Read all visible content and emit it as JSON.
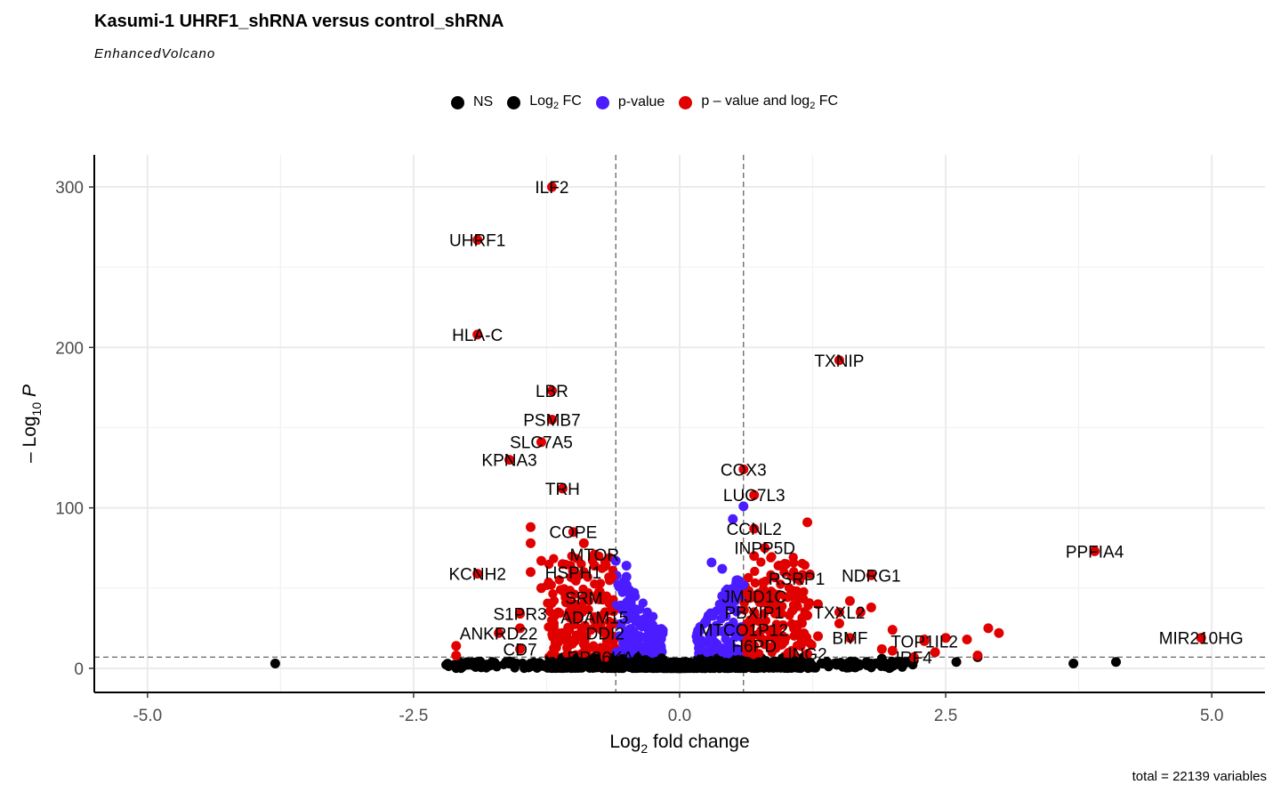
{
  "title": "Kasumi-1 UHRF1_shRNA versus control_shRNA",
  "subtitle": "EnhancedVolcano",
  "caption": "total = 22139 variables",
  "legend": [
    {
      "key": "ns",
      "label": "NS",
      "color": "#000000"
    },
    {
      "key": "fc",
      "label": "Log",
      "sub": "2",
      "suffix": " FC",
      "color": "#000000"
    },
    {
      "key": "p",
      "label": "p-value",
      "color": "#4b1cff"
    },
    {
      "key": "pfc",
      "label": "p – value and log",
      "sub": "2",
      "suffix": " FC",
      "color": "#e00000"
    }
  ],
  "chart_data": {
    "type": "scatter",
    "title": "Kasumi-1 UHRF1_shRNA versus control_shRNA",
    "subtitle": "EnhancedVolcano",
    "xlabel": "Log2 fold change",
    "ylabel": "– Log10 P",
    "xlim": [
      -5.5,
      5.5
    ],
    "ylim": [
      -15,
      320
    ],
    "xticks": [
      -5.0,
      -2.5,
      0.0,
      2.5,
      5.0
    ],
    "xtick_labels": [
      "-5.0",
      "-2.5",
      "0.0",
      "2.5",
      "5.0"
    ],
    "yticks": [
      0,
      100,
      200,
      300
    ],
    "ytick_labels": [
      "0",
      "100",
      "200",
      "300"
    ],
    "fc_cutoff": 0.6,
    "p_cutoff_neglog10": 7,
    "grid": true,
    "legend_position": "top",
    "colors": {
      "ns": "#000000",
      "fc": "#000000",
      "p": "#4b1cff",
      "pfc": "#e00000"
    },
    "labeled_points": [
      {
        "gene": "ILF2",
        "x": -1.2,
        "y": 300
      },
      {
        "gene": "UHRF1",
        "x": -1.9,
        "y": 267
      },
      {
        "gene": "HLA-C",
        "x": -1.9,
        "y": 208
      },
      {
        "gene": "TXNIP",
        "x": 1.5,
        "y": 192
      },
      {
        "gene": "LBR",
        "x": -1.2,
        "y": 173
      },
      {
        "gene": "PSMB7",
        "x": -1.2,
        "y": 155
      },
      {
        "gene": "SLC7A5",
        "x": -1.3,
        "y": 141
      },
      {
        "gene": "KPNA3",
        "x": -1.6,
        "y": 130
      },
      {
        "gene": "COX3",
        "x": 0.6,
        "y": 124
      },
      {
        "gene": "TRH",
        "x": -1.1,
        "y": 112
      },
      {
        "gene": "LUC7L3",
        "x": 0.7,
        "y": 108
      },
      {
        "gene": "CCNL2",
        "x": 0.7,
        "y": 87
      },
      {
        "gene": "COPE",
        "x": -1.0,
        "y": 85
      },
      {
        "gene": "INPP5D",
        "x": 0.8,
        "y": 75
      },
      {
        "gene": "PPFIA4",
        "x": 3.9,
        "y": 73
      },
      {
        "gene": "MTOR",
        "x": -0.8,
        "y": 71
      },
      {
        "gene": "HSPH1",
        "x": -1.0,
        "y": 60
      },
      {
        "gene": "KCNH2",
        "x": -1.9,
        "y": 59
      },
      {
        "gene": "NDRG1",
        "x": 1.8,
        "y": 58
      },
      {
        "gene": "RSRP1",
        "x": 1.1,
        "y": 56
      },
      {
        "gene": "JMJD1C",
        "x": 0.7,
        "y": 45
      },
      {
        "gene": "SRM",
        "x": -0.9,
        "y": 44
      },
      {
        "gene": "PBXIP1",
        "x": 0.7,
        "y": 35
      },
      {
        "gene": "TXXL2",
        "x": 1.5,
        "y": 35
      },
      {
        "gene": "S1PR3",
        "x": -1.5,
        "y": 34
      },
      {
        "gene": "ADAM15",
        "x": -0.8,
        "y": 32
      },
      {
        "gene": "MTCO1P12",
        "x": 0.6,
        "y": 24
      },
      {
        "gene": "ANKRD22",
        "x": -1.7,
        "y": 22
      },
      {
        "gene": "DDI2",
        "x": -0.7,
        "y": 22
      },
      {
        "gene": "MIR210HG",
        "x": 4.9,
        "y": 19
      },
      {
        "gene": "BMF",
        "x": 1.6,
        "y": 19
      },
      {
        "gene": "TOP1IL2",
        "x": 2.3,
        "y": 17
      },
      {
        "gene": "H6PD",
        "x": 0.7,
        "y": 14
      },
      {
        "gene": "CD7",
        "x": -1.5,
        "y": 12
      },
      {
        "gene": "IRF4",
        "x": 2.2,
        "y": 7
      },
      {
        "gene": "RPS6KA1",
        "x": -0.7,
        "y": 7
      },
      {
        "gene": "ING2",
        "x": 1.2,
        "y": 9
      }
    ],
    "other_points": {
      "ns": [
        [
          -3.8,
          3
        ],
        [
          3.7,
          3
        ],
        [
          4.1,
          4
        ],
        [
          2.8,
          7
        ],
        [
          2.6,
          4
        ],
        [
          -1.9,
          4
        ],
        [
          -1.4,
          3
        ],
        [
          -1.6,
          3
        ],
        [
          2.2,
          5
        ],
        [
          1.8,
          3
        ],
        [
          1.9,
          6
        ]
      ],
      "pfc": [
        [
          -1.4,
          88
        ],
        [
          -1.4,
          78
        ],
        [
          -1.3,
          67
        ],
        [
          -0.9,
          78
        ],
        [
          -1.1,
          65
        ],
        [
          -1.3,
          50
        ],
        [
          -1.4,
          60
        ],
        [
          -2.1,
          14
        ],
        [
          -2.1,
          8
        ],
        [
          -1.0,
          40
        ],
        [
          -1.1,
          49
        ],
        [
          -0.9,
          60
        ],
        [
          -0.8,
          64
        ],
        [
          1.2,
          91
        ],
        [
          0.7,
          70
        ],
        [
          1.0,
          65
        ],
        [
          1.1,
          48
        ],
        [
          1.3,
          40
        ],
        [
          1.6,
          42
        ],
        [
          1.7,
          35
        ],
        [
          1.8,
          38
        ],
        [
          2.0,
          24
        ],
        [
          2.3,
          18
        ],
        [
          2.5,
          19
        ],
        [
          2.7,
          18
        ],
        [
          2.9,
          25
        ],
        [
          3.0,
          22
        ],
        [
          2.4,
          10
        ],
        [
          2.8,
          8
        ],
        [
          2.0,
          11
        ],
        [
          1.5,
          28
        ],
        [
          1.9,
          12
        ],
        [
          -1.5,
          25
        ],
        [
          -0.8,
          30
        ],
        [
          -0.7,
          35
        ],
        [
          0.9,
          22
        ],
        [
          0.8,
          15
        ],
        [
          1.1,
          27
        ],
        [
          1.3,
          20
        ],
        [
          -0.9,
          15
        ],
        [
          -1.1,
          22
        ],
        [
          -1.2,
          30
        ],
        [
          0.9,
          40
        ],
        [
          1.2,
          33
        ]
      ],
      "p": [
        [
          0.3,
          66
        ],
        [
          0.4,
          62
        ],
        [
          0.6,
          52
        ],
        [
          -0.6,
          67
        ],
        [
          -0.5,
          64
        ],
        [
          0.5,
          93
        ],
        [
          0.6,
          101
        ],
        [
          -0.5,
          57
        ],
        [
          0.4,
          45
        ],
        [
          0.4,
          38
        ],
        [
          -0.5,
          40
        ]
      ]
    }
  }
}
